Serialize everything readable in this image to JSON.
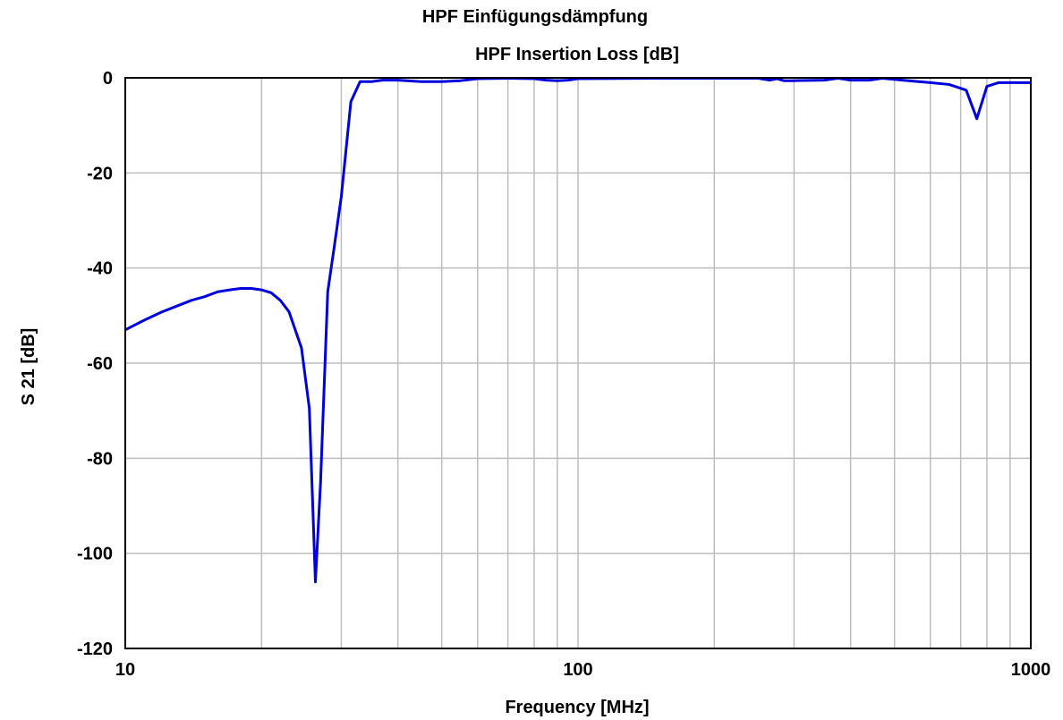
{
  "chart_data": {
    "type": "line",
    "title": "HPF Einfügungsdämpfung",
    "subtitle": "HPF Insertion Loss [dB]",
    "xlabel": "Frequency [MHz]",
    "ylabel": "S 21 [dB]",
    "xscale": "log",
    "xlim": [
      10,
      1000
    ],
    "ylim": [
      -120,
      0
    ],
    "x_ticks": [
      10,
      100,
      1000
    ],
    "x_tick_labels": [
      "10",
      "100",
      "1000"
    ],
    "y_ticks": [
      0,
      -20,
      -40,
      -60,
      -80,
      -100,
      -120
    ],
    "y_tick_labels": [
      "0",
      "-20",
      "-40",
      "-60",
      "-80",
      "-100",
      "-120"
    ],
    "grid": true,
    "line_color": "#0000dd",
    "series": [
      {
        "x": [
          10,
          11,
          12,
          13,
          14,
          15,
          16,
          17,
          18,
          19,
          20,
          21,
          22,
          23,
          24.5,
          25.5,
          26.3,
          27,
          28,
          29,
          30,
          31.5,
          33,
          35,
          37,
          40,
          45,
          50,
          55,
          60,
          70,
          80,
          85,
          90,
          95,
          100,
          150,
          200,
          250,
          265,
          275,
          285,
          300,
          350,
          375,
          400,
          440,
          470,
          520,
          600,
          660,
          720,
          760,
          800,
          850,
          900,
          1000
        ],
        "y": [
          -53,
          -51,
          -49.3,
          -48,
          -46.8,
          -46,
          -45,
          -44.6,
          -44.3,
          -44.3,
          -44.6,
          -45.2,
          -46.8,
          -49.2,
          -56.8,
          -69.5,
          -106,
          -85,
          -45,
          -35,
          -25,
          -5,
          -0.8,
          -0.8,
          -0.5,
          -0.5,
          -0.8,
          -0.8,
          -0.6,
          -0.2,
          -0.1,
          -0.2,
          -0.5,
          -0.6,
          -0.5,
          -0.2,
          -0.1,
          -0.1,
          -0.1,
          -0.5,
          -0.2,
          -0.6,
          -0.6,
          -0.5,
          -0.1,
          -0.5,
          -0.5,
          -0.1,
          -0.5,
          -1,
          -1.4,
          -2.6,
          -8.6,
          -1.8,
          -1,
          -1,
          -1
        ]
      }
    ]
  }
}
